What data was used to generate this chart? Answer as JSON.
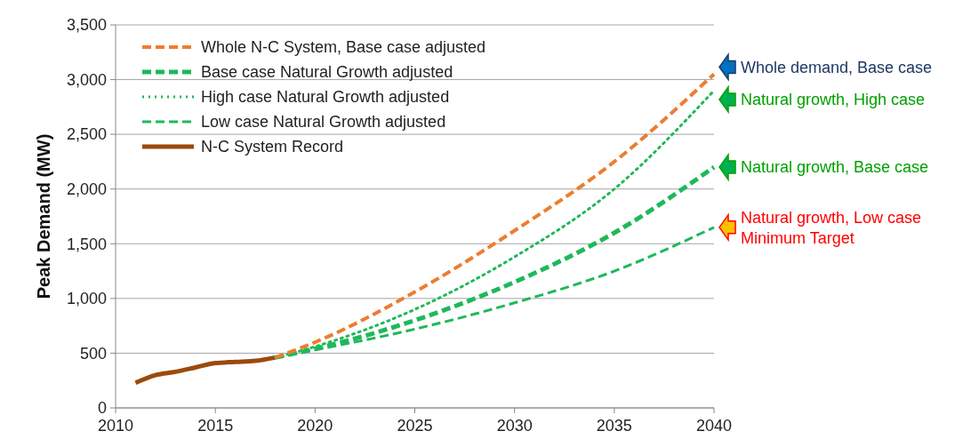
{
  "chart_data": {
    "type": "line",
    "ylabel": "Peak Demand (MW)",
    "xlim": [
      2010,
      2040
    ],
    "xticks": [
      2010,
      2015,
      2020,
      2025,
      2030,
      2035,
      2040
    ],
    "ylim": [
      0,
      3500
    ],
    "yticks": [
      0,
      500,
      {
        "value": 1000,
        "label": "1,000"
      },
      {
        "value": 1500,
        "label": "1,500"
      },
      {
        "value": 2000,
        "label": "2,000"
      },
      {
        "value": 2500,
        "label": "2,500"
      },
      {
        "value": 3000,
        "label": "3,000"
      },
      {
        "value": 3500,
        "label": "3,500"
      }
    ],
    "grid": "y",
    "legend": "top left",
    "series": [
      {
        "name": "Whole N-C System, Base case adjusted",
        "color": "#ed7d31",
        "line_style": "dashed",
        "x": [
          2018,
          2020,
          2025,
          2030,
          2035,
          2040
        ],
        "values": [
          460,
          600,
          1060,
          1620,
          2250,
          3050
        ]
      },
      {
        "name": "Base case Natural Growth adjusted",
        "color": "#1fb85a",
        "line_style": "dashed",
        "x": [
          2018,
          2020,
          2025,
          2030,
          2035,
          2040
        ],
        "values": [
          460,
          540,
          800,
          1150,
          1600,
          2200
        ]
      },
      {
        "name": "High case Natural Growth adjusted",
        "color": "#1fb85a",
        "line_style": "dotted",
        "x": [
          2018,
          2020,
          2025,
          2030,
          2035,
          2040
        ],
        "values": [
          460,
          560,
          900,
          1380,
          2000,
          2900
        ]
      },
      {
        "name": "Low case Natural Growth adjusted",
        "color": "#1fb85a",
        "line_style": "dashed",
        "x": [
          2018,
          2020,
          2025,
          2030,
          2035,
          2040
        ],
        "values": [
          460,
          530,
          720,
          960,
          1250,
          1650
        ]
      },
      {
        "name": "N-C System Record",
        "color": "#9c4a0c",
        "line_style": "solid",
        "x": [
          2011,
          2012,
          2013,
          2014,
          2015,
          2016,
          2017,
          2018
        ],
        "values": [
          230,
          300,
          330,
          370,
          410,
          420,
          430,
          460
        ]
      }
    ],
    "annotations": [
      "Whole demand, Base case",
      "Natural growth, High case",
      "Natural growth, Base case",
      "Natural growth, Low case\nMinimum Target"
    ]
  }
}
